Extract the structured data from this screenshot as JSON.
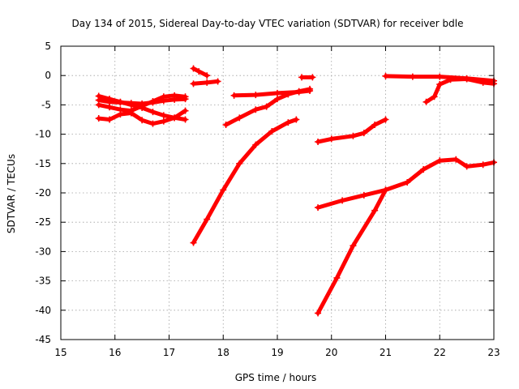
{
  "chart_data": {
    "type": "scatter",
    "title": "Day 134 of 2015, Sidereal Day-to-day VTEC variation (SDTVAR) for receiver bdle",
    "xlabel": "GPS time / hours",
    "ylabel": "SDTVAR / TECUs",
    "xlim": [
      15,
      23
    ],
    "ylim": [
      -45,
      5
    ],
    "xticks": [
      15,
      16,
      17,
      18,
      19,
      20,
      21,
      22,
      23
    ],
    "yticks": [
      5,
      0,
      -5,
      -10,
      -15,
      -20,
      -25,
      -30,
      -35,
      -40,
      -45
    ],
    "grid": true,
    "marker_color": "#ff0000",
    "series": [
      {
        "x": [
          15.7,
          15.9,
          16.1,
          16.3,
          16.5,
          16.7,
          16.9,
          17.1,
          17.3
        ],
        "y": [
          -3.5,
          -4.0,
          -4.5,
          -5.0,
          -5.5,
          -6.2,
          -6.8,
          -7.2,
          -7.5
        ]
      },
      {
        "x": [
          15.7,
          15.9,
          16.1,
          16.3,
          16.5,
          16.7,
          16.9,
          17.1,
          17.3
        ],
        "y": [
          -4.2,
          -4.5,
          -4.6,
          -4.7,
          -4.8,
          -4.6,
          -4.3,
          -4.1,
          -4.0
        ]
      },
      {
        "x": [
          15.7,
          15.9,
          16.1,
          16.3,
          16.5,
          16.7,
          16.9,
          17.1,
          17.3
        ],
        "y": [
          -5.0,
          -5.4,
          -5.8,
          -6.0,
          -5.2,
          -4.4,
          -3.6,
          -3.4,
          -3.6
        ]
      },
      {
        "x": [
          15.7,
          15.9,
          16.1,
          16.3,
          16.5,
          16.7,
          16.9,
          17.1,
          17.3
        ],
        "y": [
          -7.3,
          -7.5,
          -6.6,
          -6.4,
          -7.6,
          -8.2,
          -7.8,
          -7.2,
          -6.0
        ]
      },
      {
        "x": [
          17.45,
          17.55,
          17.7
        ],
        "y": [
          1.2,
          0.7,
          0.0
        ]
      },
      {
        "x": [
          17.45,
          17.7,
          17.9
        ],
        "y": [
          -1.4,
          -1.2,
          -1.0
        ]
      },
      {
        "x": [
          17.45,
          17.7,
          18.0,
          18.3,
          18.6,
          18.9,
          19.2,
          19.35
        ],
        "y": [
          -28.5,
          -24.5,
          -19.5,
          -15.0,
          -11.8,
          -9.5,
          -8.0,
          -7.5
        ]
      },
      {
        "x": [
          18.05,
          18.3,
          18.6,
          18.8,
          19.0,
          19.2,
          19.4,
          19.6
        ],
        "y": [
          -8.4,
          -7.2,
          -5.8,
          -5.3,
          -4.0,
          -3.2,
          -2.7,
          -2.3
        ]
      },
      {
        "x": [
          18.2,
          18.6,
          19.0,
          19.4,
          19.6
        ],
        "y": [
          -3.4,
          -3.3,
          -3.0,
          -2.8,
          -2.6
        ]
      },
      {
        "x": [
          19.45,
          19.65
        ],
        "y": [
          -0.3,
          -0.3
        ]
      },
      {
        "x": [
          19.75,
          20.0,
          20.4,
          20.6,
          20.8,
          21.0
        ],
        "y": [
          -11.3,
          -10.8,
          -10.3,
          -9.8,
          -8.4,
          -7.5
        ]
      },
      {
        "x": [
          19.75,
          20.2,
          20.6,
          21.0,
          21.4,
          21.7,
          22.0,
          22.3,
          22.5,
          22.8,
          23.0
        ],
        "y": [
          -22.5,
          -21.3,
          -20.4,
          -19.5,
          -18.2,
          -16.0,
          -14.5,
          -14.3,
          -15.5,
          -15.2,
          -14.8
        ]
      },
      {
        "x": [
          19.75,
          20.1,
          20.4,
          20.8,
          21.0
        ],
        "y": [
          -40.5,
          -34.5,
          -29.0,
          -23.0,
          -19.5
        ]
      },
      {
        "x": [
          21.0,
          21.5,
          22.0,
          22.5,
          23.0
        ],
        "y": [
          -0.1,
          -0.2,
          -0.2,
          -0.5,
          -0.9
        ]
      },
      {
        "x": [
          21.75,
          21.9,
          22.0,
          22.2,
          22.5,
          22.8,
          23.0
        ],
        "y": [
          -4.5,
          -3.6,
          -1.5,
          -0.7,
          -0.6,
          -1.2,
          -1.4
        ]
      }
    ]
  }
}
